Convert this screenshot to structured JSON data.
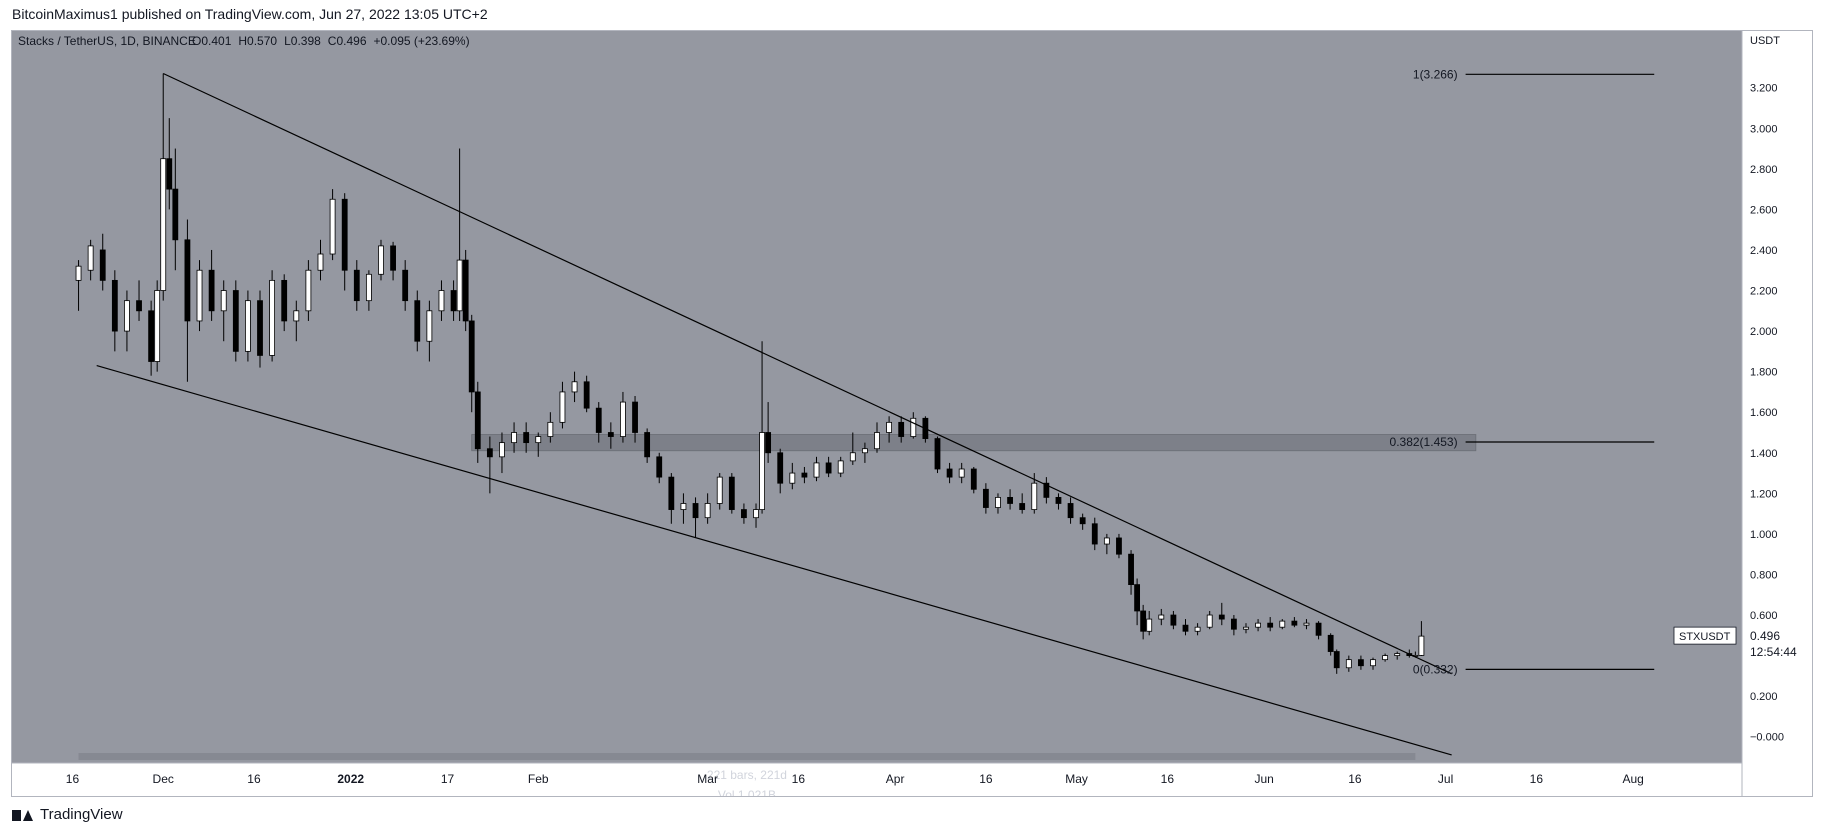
{
  "publisher_line": "BitcoinMaximus1 published on TradingView.com, Jun 27, 2022 13:05 UTC+2",
  "footer_brand": "TradingView",
  "colors": {
    "plot_bg": "#9598a1",
    "scale_bg": "#ffffff",
    "candle_up": "#ffffff",
    "candle_down": "#000000",
    "line": "#000000",
    "zone": "#7d8089",
    "text": "#131722",
    "text_light": "#d1d4dc",
    "label_bg": "#ffffff"
  },
  "chart_data": {
    "type": "candlestick",
    "symbol_header": "Stacks / TetherUS, 1D, BINANCE",
    "ohlc": {
      "o_label": "O",
      "o": "0.401",
      "h_label": "H",
      "h": "0.570",
      "l_label": "L",
      "l": "0.398",
      "c_label": "C",
      "c": "0.496",
      "change": "+0.095 (+23.69%)"
    },
    "y_axis_unit": "USDT",
    "ylim": [
      -0.1,
      3.45
    ],
    "y_ticks": [
      "3.200",
      "3.000",
      "2.800",
      "2.600",
      "2.400",
      "2.200",
      "2.000",
      "1.800",
      "1.600",
      "1.400",
      "1.200",
      "1.000",
      "0.800",
      "0.600",
      "0.400",
      "0.200",
      "−0.000"
    ],
    "y_tick_values": [
      3.2,
      3.0,
      2.8,
      2.6,
      2.4,
      2.2,
      2.0,
      1.8,
      1.6,
      1.4,
      1.2,
      1.0,
      0.8,
      0.6,
      0.4,
      0.2,
      0.0
    ],
    "x_range": [
      "2021-11-06",
      "2022-08-19"
    ],
    "x_ticks": [
      {
        "label": "16",
        "date": "2021-11-16",
        "bold": false
      },
      {
        "label": "Dec",
        "date": "2021-12-01",
        "bold": false
      },
      {
        "label": "16",
        "date": "2021-12-16",
        "bold": false
      },
      {
        "label": "2022",
        "date": "2022-01-01",
        "bold": true
      },
      {
        "label": "17",
        "date": "2022-01-17",
        "bold": false
      },
      {
        "label": "Feb",
        "date": "2022-02-01",
        "bold": false
      },
      {
        "label": "Mar",
        "date": "2022-03-01",
        "bold": false
      },
      {
        "label": "16",
        "date": "2022-03-16",
        "bold": false
      },
      {
        "label": "Apr",
        "date": "2022-04-01",
        "bold": false
      },
      {
        "label": "16",
        "date": "2022-04-16",
        "bold": false
      },
      {
        "label": "May",
        "date": "2022-05-01",
        "bold": false
      },
      {
        "label": "16",
        "date": "2022-05-16",
        "bold": false
      },
      {
        "label": "Jun",
        "date": "2022-06-01",
        "bold": false
      },
      {
        "label": "16",
        "date": "2022-06-16",
        "bold": false
      },
      {
        "label": "Jul",
        "date": "2022-07-01",
        "bold": false
      },
      {
        "label": "16",
        "date": "2022-07-16",
        "bold": false
      },
      {
        "label": "Aug",
        "date": "2022-08-01",
        "bold": false
      }
    ],
    "candles": [
      {
        "d": "2021-11-17",
        "o": 2.25,
        "h": 2.35,
        "l": 2.1,
        "c": 2.32
      },
      {
        "d": "2021-11-19",
        "o": 2.3,
        "h": 2.45,
        "l": 2.25,
        "c": 2.42
      },
      {
        "d": "2021-11-21",
        "o": 2.4,
        "h": 2.48,
        "l": 2.2,
        "c": 2.25
      },
      {
        "d": "2021-11-23",
        "o": 2.25,
        "h": 2.3,
        "l": 1.9,
        "c": 2.0
      },
      {
        "d": "2021-11-25",
        "o": 2.0,
        "h": 2.2,
        "l": 1.9,
        "c": 2.15
      },
      {
        "d": "2021-11-27",
        "o": 2.15,
        "h": 2.25,
        "l": 2.05,
        "c": 2.1
      },
      {
        "d": "2021-11-29",
        "o": 2.1,
        "h": 2.15,
        "l": 1.78,
        "c": 1.85
      },
      {
        "d": "2021-11-30",
        "o": 1.85,
        "h": 2.25,
        "l": 1.8,
        "c": 2.2
      },
      {
        "d": "2021-12-01",
        "o": 2.2,
        "h": 3.27,
        "l": 2.15,
        "c": 2.85
      },
      {
        "d": "2021-12-02",
        "o": 2.85,
        "h": 3.05,
        "l": 2.6,
        "c": 2.7
      },
      {
        "d": "2021-12-03",
        "o": 2.7,
        "h": 2.9,
        "l": 2.3,
        "c": 2.45
      },
      {
        "d": "2021-12-05",
        "o": 2.45,
        "h": 2.55,
        "l": 1.75,
        "c": 2.05
      },
      {
        "d": "2021-12-07",
        "o": 2.05,
        "h": 2.35,
        "l": 2.0,
        "c": 2.3
      },
      {
        "d": "2021-12-09",
        "o": 2.3,
        "h": 2.4,
        "l": 2.05,
        "c": 2.1
      },
      {
        "d": "2021-12-11",
        "o": 2.1,
        "h": 2.25,
        "l": 1.95,
        "c": 2.2
      },
      {
        "d": "2021-12-13",
        "o": 2.2,
        "h": 2.25,
        "l": 1.85,
        "c": 1.9
      },
      {
        "d": "2021-12-15",
        "o": 1.9,
        "h": 2.2,
        "l": 1.85,
        "c": 2.15
      },
      {
        "d": "2021-12-17",
        "o": 2.15,
        "h": 2.2,
        "l": 1.82,
        "c": 1.88
      },
      {
        "d": "2021-12-19",
        "o": 1.88,
        "h": 2.3,
        "l": 1.85,
        "c": 2.25
      },
      {
        "d": "2021-12-21",
        "o": 2.25,
        "h": 2.28,
        "l": 2.0,
        "c": 2.05
      },
      {
        "d": "2021-12-23",
        "o": 2.05,
        "h": 2.15,
        "l": 1.95,
        "c": 2.1
      },
      {
        "d": "2021-12-25",
        "o": 2.1,
        "h": 2.35,
        "l": 2.05,
        "c": 2.3
      },
      {
        "d": "2021-12-27",
        "o": 2.3,
        "h": 2.45,
        "l": 2.25,
        "c": 2.38
      },
      {
        "d": "2021-12-29",
        "o": 2.38,
        "h": 2.7,
        "l": 2.35,
        "c": 2.65
      },
      {
        "d": "2021-12-31",
        "o": 2.65,
        "h": 2.68,
        "l": 2.2,
        "c": 2.3
      },
      {
        "d": "2022-01-02",
        "o": 2.3,
        "h": 2.35,
        "l": 2.1,
        "c": 2.15
      },
      {
        "d": "2022-01-04",
        "o": 2.15,
        "h": 2.3,
        "l": 2.1,
        "c": 2.28
      },
      {
        "d": "2022-01-06",
        "o": 2.28,
        "h": 2.45,
        "l": 2.25,
        "c": 2.42
      },
      {
        "d": "2022-01-08",
        "o": 2.42,
        "h": 2.44,
        "l": 2.25,
        "c": 2.3
      },
      {
        "d": "2022-01-10",
        "o": 2.3,
        "h": 2.35,
        "l": 2.1,
        "c": 2.15
      },
      {
        "d": "2022-01-12",
        "o": 2.15,
        "h": 2.2,
        "l": 1.9,
        "c": 1.95
      },
      {
        "d": "2022-01-14",
        "o": 1.95,
        "h": 2.15,
        "l": 1.85,
        "c": 2.1
      },
      {
        "d": "2022-01-16",
        "o": 2.1,
        "h": 2.25,
        "l": 2.05,
        "c": 2.2
      },
      {
        "d": "2022-01-18",
        "o": 2.2,
        "h": 2.25,
        "l": 2.05,
        "c": 2.1
      },
      {
        "d": "2022-01-19",
        "o": 2.1,
        "h": 2.9,
        "l": 2.05,
        "c": 2.35
      },
      {
        "d": "2022-01-20",
        "o": 2.35,
        "h": 2.4,
        "l": 2.0,
        "c": 2.05
      },
      {
        "d": "2022-01-21",
        "o": 2.05,
        "h": 2.08,
        "l": 1.6,
        "c": 1.7
      },
      {
        "d": "2022-01-22",
        "o": 1.7,
        "h": 1.75,
        "l": 1.35,
        "c": 1.42
      },
      {
        "d": "2022-01-24",
        "o": 1.42,
        "h": 1.48,
        "l": 1.2,
        "c": 1.38
      },
      {
        "d": "2022-01-26",
        "o": 1.38,
        "h": 1.5,
        "l": 1.3,
        "c": 1.45
      },
      {
        "d": "2022-01-28",
        "o": 1.45,
        "h": 1.55,
        "l": 1.4,
        "c": 1.5
      },
      {
        "d": "2022-01-30",
        "o": 1.5,
        "h": 1.55,
        "l": 1.4,
        "c": 1.45
      },
      {
        "d": "2022-02-01",
        "o": 1.45,
        "h": 1.5,
        "l": 1.38,
        "c": 1.48
      },
      {
        "d": "2022-02-03",
        "o": 1.48,
        "h": 1.6,
        "l": 1.45,
        "c": 1.55
      },
      {
        "d": "2022-02-05",
        "o": 1.55,
        "h": 1.75,
        "l": 1.52,
        "c": 1.7
      },
      {
        "d": "2022-02-07",
        "o": 1.7,
        "h": 1.8,
        "l": 1.65,
        "c": 1.75
      },
      {
        "d": "2022-02-09",
        "o": 1.75,
        "h": 1.78,
        "l": 1.6,
        "c": 1.62
      },
      {
        "d": "2022-02-11",
        "o": 1.62,
        "h": 1.65,
        "l": 1.45,
        "c": 1.5
      },
      {
        "d": "2022-02-13",
        "o": 1.5,
        "h": 1.55,
        "l": 1.42,
        "c": 1.48
      },
      {
        "d": "2022-02-15",
        "o": 1.48,
        "h": 1.7,
        "l": 1.45,
        "c": 1.65
      },
      {
        "d": "2022-02-17",
        "o": 1.65,
        "h": 1.68,
        "l": 1.45,
        "c": 1.5
      },
      {
        "d": "2022-02-19",
        "o": 1.5,
        "h": 1.52,
        "l": 1.35,
        "c": 1.38
      },
      {
        "d": "2022-02-21",
        "o": 1.38,
        "h": 1.4,
        "l": 1.25,
        "c": 1.28
      },
      {
        "d": "2022-02-23",
        "o": 1.28,
        "h": 1.3,
        "l": 1.05,
        "c": 1.12
      },
      {
        "d": "2022-02-25",
        "o": 1.12,
        "h": 1.2,
        "l": 1.05,
        "c": 1.15
      },
      {
        "d": "2022-02-27",
        "o": 1.15,
        "h": 1.18,
        "l": 0.98,
        "c": 1.08
      },
      {
        "d": "2022-03-01",
        "o": 1.08,
        "h": 1.2,
        "l": 1.05,
        "c": 1.15
      },
      {
        "d": "2022-03-03",
        "o": 1.15,
        "h": 1.3,
        "l": 1.12,
        "c": 1.28
      },
      {
        "d": "2022-03-05",
        "o": 1.28,
        "h": 1.3,
        "l": 1.1,
        "c": 1.12
      },
      {
        "d": "2022-03-07",
        "o": 1.12,
        "h": 1.15,
        "l": 1.05,
        "c": 1.08
      },
      {
        "d": "2022-03-09",
        "o": 1.08,
        "h": 1.15,
        "l": 1.03,
        "c": 1.12
      },
      {
        "d": "2022-03-10",
        "o": 1.12,
        "h": 1.95,
        "l": 1.1,
        "c": 1.5
      },
      {
        "d": "2022-03-11",
        "o": 1.5,
        "h": 1.65,
        "l": 1.35,
        "c": 1.4
      },
      {
        "d": "2022-03-13",
        "o": 1.4,
        "h": 1.42,
        "l": 1.2,
        "c": 1.25
      },
      {
        "d": "2022-03-15",
        "o": 1.25,
        "h": 1.35,
        "l": 1.22,
        "c": 1.3
      },
      {
        "d": "2022-03-17",
        "o": 1.3,
        "h": 1.33,
        "l": 1.25,
        "c": 1.28
      },
      {
        "d": "2022-03-19",
        "o": 1.28,
        "h": 1.38,
        "l": 1.26,
        "c": 1.35
      },
      {
        "d": "2022-03-21",
        "o": 1.35,
        "h": 1.38,
        "l": 1.28,
        "c": 1.3
      },
      {
        "d": "2022-03-23",
        "o": 1.3,
        "h": 1.38,
        "l": 1.28,
        "c": 1.36
      },
      {
        "d": "2022-03-25",
        "o": 1.36,
        "h": 1.5,
        "l": 1.34,
        "c": 1.4
      },
      {
        "d": "2022-03-27",
        "o": 1.4,
        "h": 1.45,
        "l": 1.35,
        "c": 1.42
      },
      {
        "d": "2022-03-29",
        "o": 1.42,
        "h": 1.55,
        "l": 1.4,
        "c": 1.5
      },
      {
        "d": "2022-03-31",
        "o": 1.5,
        "h": 1.58,
        "l": 1.45,
        "c": 1.55
      },
      {
        "d": "2022-04-02",
        "o": 1.55,
        "h": 1.58,
        "l": 1.45,
        "c": 1.48
      },
      {
        "d": "2022-04-04",
        "o": 1.48,
        "h": 1.6,
        "l": 1.47,
        "c": 1.57
      },
      {
        "d": "2022-04-06",
        "o": 1.57,
        "h": 1.58,
        "l": 1.45,
        "c": 1.47
      },
      {
        "d": "2022-04-08",
        "o": 1.47,
        "h": 1.48,
        "l": 1.3,
        "c": 1.32
      },
      {
        "d": "2022-04-10",
        "o": 1.32,
        "h": 1.35,
        "l": 1.25,
        "c": 1.28
      },
      {
        "d": "2022-04-12",
        "o": 1.28,
        "h": 1.35,
        "l": 1.25,
        "c": 1.32
      },
      {
        "d": "2022-04-14",
        "o": 1.32,
        "h": 1.33,
        "l": 1.2,
        "c": 1.22
      },
      {
        "d": "2022-04-16",
        "o": 1.22,
        "h": 1.25,
        "l": 1.1,
        "c": 1.13
      },
      {
        "d": "2022-04-18",
        "o": 1.13,
        "h": 1.2,
        "l": 1.1,
        "c": 1.18
      },
      {
        "d": "2022-04-20",
        "o": 1.18,
        "h": 1.22,
        "l": 1.12,
        "c": 1.15
      },
      {
        "d": "2022-04-22",
        "o": 1.15,
        "h": 1.2,
        "l": 1.1,
        "c": 1.12
      },
      {
        "d": "2022-04-24",
        "o": 1.12,
        "h": 1.3,
        "l": 1.1,
        "c": 1.25
      },
      {
        "d": "2022-04-26",
        "o": 1.25,
        "h": 1.28,
        "l": 1.15,
        "c": 1.18
      },
      {
        "d": "2022-04-28",
        "o": 1.18,
        "h": 1.2,
        "l": 1.12,
        "c": 1.15
      },
      {
        "d": "2022-04-30",
        "o": 1.15,
        "h": 1.18,
        "l": 1.05,
        "c": 1.08
      },
      {
        "d": "2022-05-02",
        "o": 1.08,
        "h": 1.1,
        "l": 1.02,
        "c": 1.05
      },
      {
        "d": "2022-05-04",
        "o": 1.05,
        "h": 1.08,
        "l": 0.92,
        "c": 0.95
      },
      {
        "d": "2022-05-06",
        "o": 0.95,
        "h": 1.0,
        "l": 0.9,
        "c": 0.98
      },
      {
        "d": "2022-05-08",
        "o": 0.98,
        "h": 1.0,
        "l": 0.88,
        "c": 0.9
      },
      {
        "d": "2022-05-10",
        "o": 0.9,
        "h": 0.92,
        "l": 0.7,
        "c": 0.75
      },
      {
        "d": "2022-05-11",
        "o": 0.75,
        "h": 0.78,
        "l": 0.55,
        "c": 0.62
      },
      {
        "d": "2022-05-12",
        "o": 0.62,
        "h": 0.65,
        "l": 0.48,
        "c": 0.52
      },
      {
        "d": "2022-05-13",
        "o": 0.52,
        "h": 0.62,
        "l": 0.5,
        "c": 0.58
      },
      {
        "d": "2022-05-15",
        "o": 0.58,
        "h": 0.63,
        "l": 0.55,
        "c": 0.6
      },
      {
        "d": "2022-05-17",
        "o": 0.6,
        "h": 0.62,
        "l": 0.53,
        "c": 0.55
      },
      {
        "d": "2022-05-19",
        "o": 0.55,
        "h": 0.58,
        "l": 0.5,
        "c": 0.52
      },
      {
        "d": "2022-05-21",
        "o": 0.52,
        "h": 0.56,
        "l": 0.5,
        "c": 0.54
      },
      {
        "d": "2022-05-23",
        "o": 0.54,
        "h": 0.62,
        "l": 0.53,
        "c": 0.6
      },
      {
        "d": "2022-05-25",
        "o": 0.6,
        "h": 0.66,
        "l": 0.55,
        "c": 0.58
      },
      {
        "d": "2022-05-27",
        "o": 0.58,
        "h": 0.6,
        "l": 0.5,
        "c": 0.53
      },
      {
        "d": "2022-05-29",
        "o": 0.53,
        "h": 0.56,
        "l": 0.51,
        "c": 0.54
      },
      {
        "d": "2022-05-31",
        "o": 0.54,
        "h": 0.58,
        "l": 0.52,
        "c": 0.56
      },
      {
        "d": "2022-06-02",
        "o": 0.56,
        "h": 0.59,
        "l": 0.52,
        "c": 0.54
      },
      {
        "d": "2022-06-04",
        "o": 0.54,
        "h": 0.58,
        "l": 0.53,
        "c": 0.57
      },
      {
        "d": "2022-06-06",
        "o": 0.57,
        "h": 0.59,
        "l": 0.54,
        "c": 0.55
      },
      {
        "d": "2022-06-08",
        "o": 0.55,
        "h": 0.58,
        "l": 0.53,
        "c": 0.56
      },
      {
        "d": "2022-06-10",
        "o": 0.56,
        "h": 0.57,
        "l": 0.48,
        "c": 0.5
      },
      {
        "d": "2022-06-12",
        "o": 0.5,
        "h": 0.51,
        "l": 0.4,
        "c": 0.42
      },
      {
        "d": "2022-06-13",
        "o": 0.42,
        "h": 0.43,
        "l": 0.31,
        "c": 0.34
      },
      {
        "d": "2022-06-15",
        "o": 0.34,
        "h": 0.4,
        "l": 0.32,
        "c": 0.38
      },
      {
        "d": "2022-06-17",
        "o": 0.38,
        "h": 0.4,
        "l": 0.33,
        "c": 0.35
      },
      {
        "d": "2022-06-19",
        "o": 0.35,
        "h": 0.39,
        "l": 0.33,
        "c": 0.38
      },
      {
        "d": "2022-06-21",
        "o": 0.38,
        "h": 0.41,
        "l": 0.37,
        "c": 0.4
      },
      {
        "d": "2022-06-23",
        "o": 0.4,
        "h": 0.42,
        "l": 0.38,
        "c": 0.41
      },
      {
        "d": "2022-06-25",
        "o": 0.41,
        "h": 0.43,
        "l": 0.39,
        "c": 0.4
      },
      {
        "d": "2022-06-26",
        "o": 0.4,
        "h": 0.42,
        "l": 0.39,
        "c": 0.401
      },
      {
        "d": "2022-06-27",
        "o": 0.401,
        "h": 0.57,
        "l": 0.398,
        "c": 0.496
      }
    ],
    "trendlines": [
      {
        "from": {
          "d": "2021-12-01",
          "y": 3.27
        },
        "to": {
          "d": "2022-07-02",
          "y": 0.31
        }
      },
      {
        "from": {
          "d": "2021-11-20",
          "y": 1.83
        },
        "to": {
          "d": "2022-07-02",
          "y": -0.09
        }
      }
    ],
    "zone": {
      "from_d": "2022-01-21",
      "to_d": "2022-07-06",
      "y_low": 1.41,
      "y_high": 1.49
    },
    "range_bar": {
      "from_d": "2021-11-17",
      "to_d": "2022-06-26",
      "y": -0.1,
      "label": "221 bars, 221d"
    },
    "volume_label": "Vol 1.021B",
    "fib_levels": [
      {
        "label": "1(3.266)",
        "value": 3.266
      },
      {
        "label": "0.382(1.453)",
        "value": 1.453
      },
      {
        "label": "0(0.332)",
        "value": 0.332
      }
    ],
    "fib_x": {
      "line_from_d": "2022-07-01",
      "line_to_d": "2022-07-14"
    },
    "last_price": {
      "symbol": "STXUSDT",
      "price": "0.496",
      "countdown": "12:54:44",
      "value": 0.496
    }
  }
}
